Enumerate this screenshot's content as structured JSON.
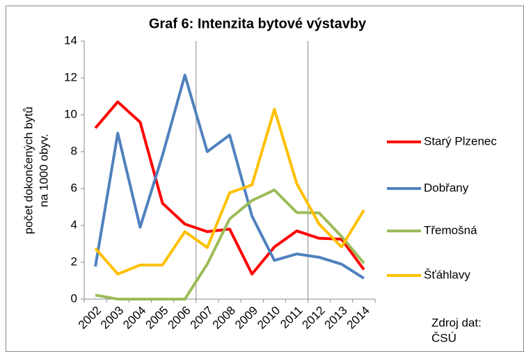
{
  "chart_data": {
    "type": "line",
    "title": "Graf 6: Intenzita bytové výstavby",
    "ylabel": [
      "počet dokončených bytů",
      "na 1000 obyv."
    ],
    "note": [
      "Zdroj dat:",
      "ČSÚ"
    ],
    "categories": [
      "2002",
      "2003",
      "2004",
      "2005",
      "2006",
      "2007",
      "2008",
      "2009",
      "2010",
      "2011",
      "2012",
      "2013",
      "2014"
    ],
    "series": [
      {
        "name": "Starý Plzenec",
        "color": "#ff0000",
        "values": [
          9.28,
          10.7,
          9.6,
          5.2,
          4.07,
          3.66,
          3.8,
          1.36,
          2.83,
          3.7,
          3.3,
          3.25,
          1.6
        ]
      },
      {
        "name": "Dobřany",
        "color": "#4f81bd",
        "values": [
          1.77,
          9.0,
          3.9,
          7.8,
          12.15,
          8.0,
          8.9,
          4.5,
          2.1,
          2.45,
          2.27,
          1.9,
          1.13
        ]
      },
      {
        "name": "Třemošná",
        "color": "#9bbb59",
        "values": [
          0.22,
          0,
          0,
          0,
          0,
          1.9,
          4.35,
          5.35,
          5.92,
          4.7,
          4.68,
          3.4,
          1.95
        ]
      },
      {
        "name": "Šťáhlavy",
        "color": "#ffc000",
        "values": [
          2.75,
          1.36,
          1.85,
          1.85,
          3.66,
          2.8,
          5.77,
          6.2,
          10.3,
          6.26,
          4.07,
          2.83,
          4.83
        ]
      }
    ],
    "ylim": [
      0,
      14
    ],
    "yticks": [
      0,
      2,
      4,
      6,
      8,
      10,
      12,
      14
    ],
    "legend": "right"
  }
}
